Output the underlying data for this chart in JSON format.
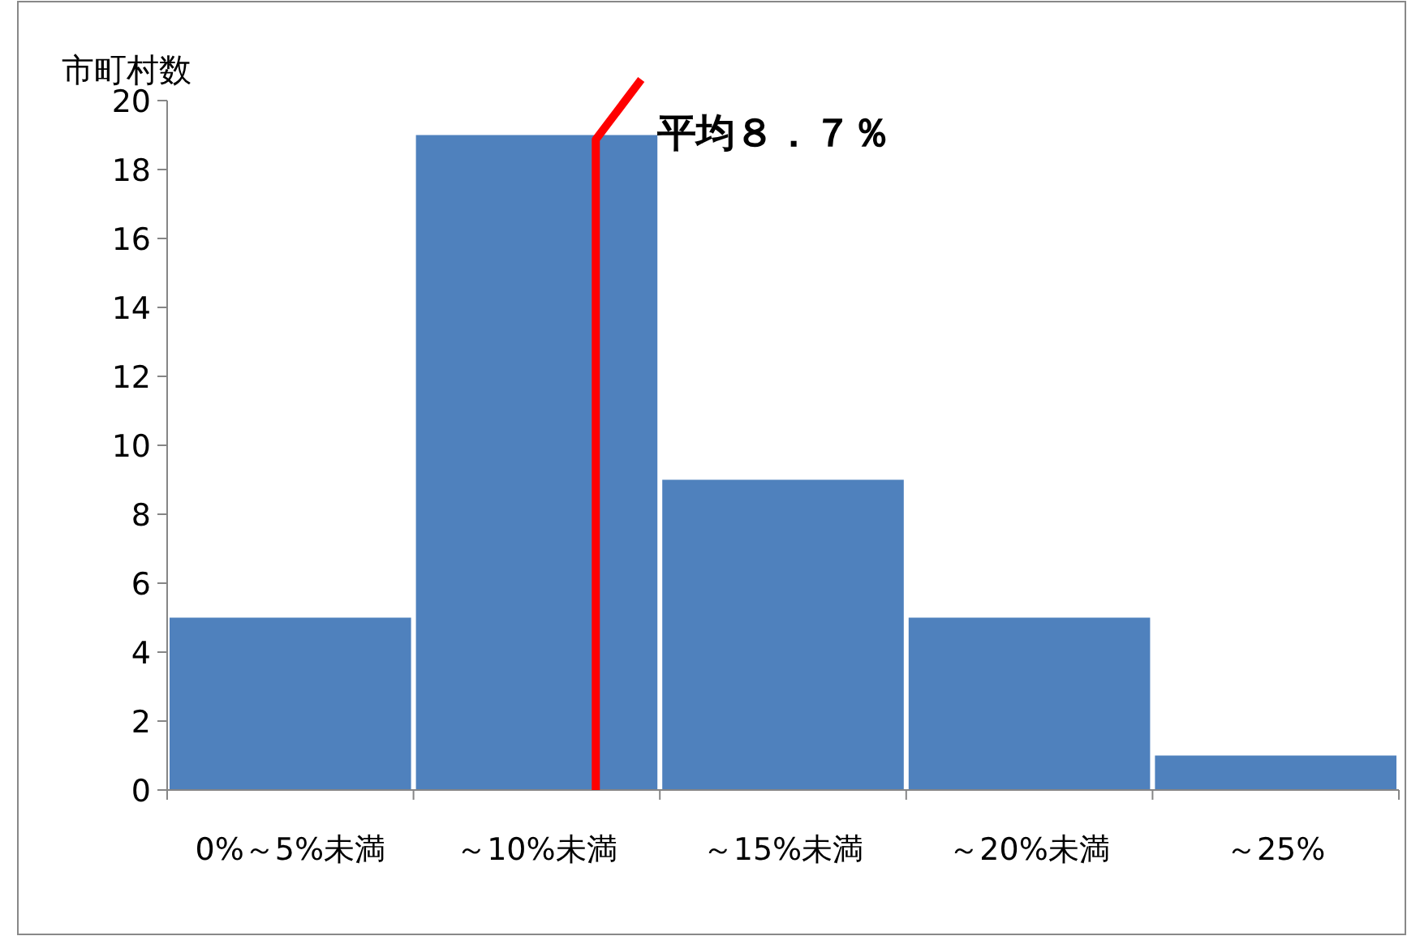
{
  "chart_data": {
    "type": "bar",
    "ylabel": "市町村数",
    "categories": [
      "0%～5%未満",
      "～10%未満",
      "～15%未満",
      "～20%未満",
      "～25%"
    ],
    "values": [
      5,
      19,
      9,
      5,
      1
    ],
    "color": "#4f81bd",
    "ylim": [
      0,
      20
    ],
    "yticks": [
      0,
      2,
      4,
      6,
      8,
      10,
      12,
      14,
      16,
      18,
      20
    ],
    "annotations": [
      "平均８．７％"
    ],
    "grid": false
  }
}
